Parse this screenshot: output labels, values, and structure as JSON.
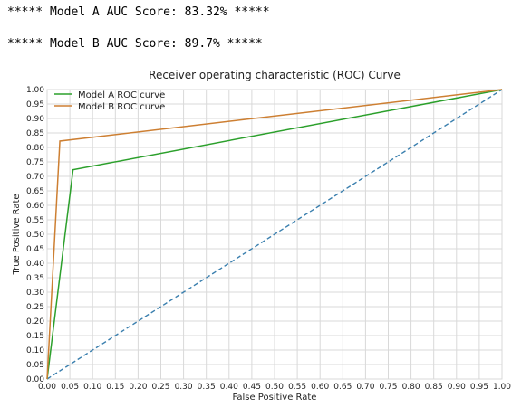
{
  "output": {
    "line_a": "***** Model A AUC Score: 83.32% *****",
    "line_b": "***** Model B AUC Score: 89.7% *****"
  },
  "chart_data": {
    "type": "line",
    "title": "Receiver operating characteristic (ROC) Curve",
    "xlabel": "False Positive Rate",
    "ylabel": "True Positive Rate",
    "xlim": [
      0,
      1
    ],
    "ylim": [
      0,
      1
    ],
    "xticks": [
      "0.00",
      "0.05",
      "0.10",
      "0.15",
      "0.20",
      "0.25",
      "0.30",
      "0.35",
      "0.40",
      "0.45",
      "0.50",
      "0.55",
      "0.60",
      "0.65",
      "0.70",
      "0.75",
      "0.80",
      "0.85",
      "0.90",
      "0.95",
      "1.00"
    ],
    "yticks": [
      "0.00",
      "0.05",
      "0.10",
      "0.15",
      "0.20",
      "0.25",
      "0.30",
      "0.35",
      "0.40",
      "0.45",
      "0.50",
      "0.55",
      "0.60",
      "0.65",
      "0.70",
      "0.75",
      "0.80",
      "0.85",
      "0.90",
      "0.95",
      "1.00"
    ],
    "grid": true,
    "legend_position": "top-left",
    "series": [
      {
        "name": "Model A ROC curve",
        "color": "#2ca02c",
        "x": [
          0,
          0.057,
          1
        ],
        "y": [
          0,
          0.723,
          1
        ]
      },
      {
        "name": "Model B ROC curve",
        "color": "#cd7f32",
        "x": [
          0,
          0.028,
          1
        ],
        "y": [
          0,
          0.822,
          1
        ]
      }
    ],
    "diagonal": {
      "color": "#3a7fae",
      "x": [
        0,
        1
      ],
      "y": [
        0,
        1
      ],
      "style": "dashed"
    }
  }
}
